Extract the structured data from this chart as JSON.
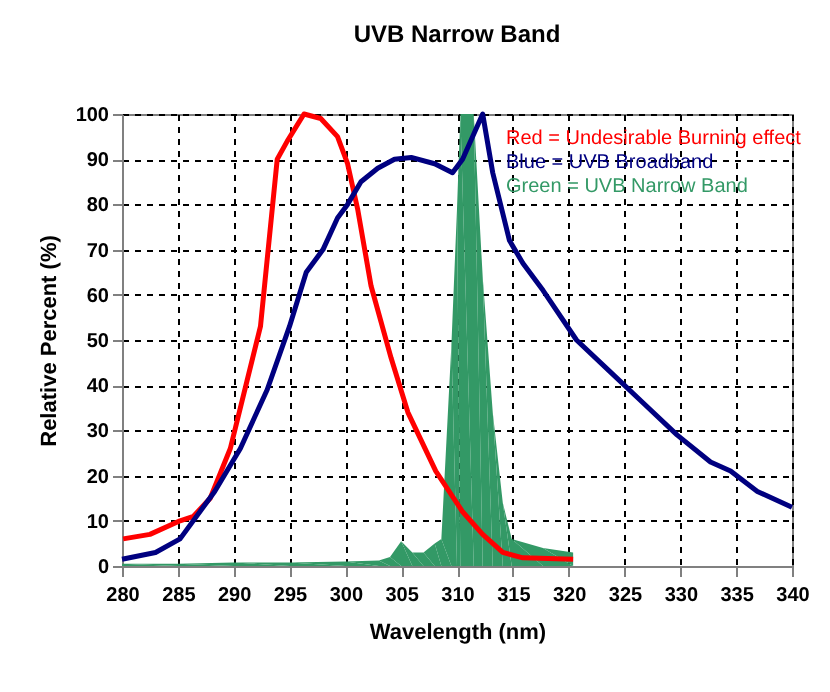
{
  "chart_data": {
    "type": "line",
    "title": "UVB Narrow Band",
    "xlabel": "Wavelength (nm)",
    "ylabel": "Relative Percent (%)",
    "xlim": [
      280,
      340
    ],
    "xticks": [
      280,
      285,
      290,
      295,
      300,
      305,
      310,
      315,
      320,
      325,
      330,
      335,
      340
    ],
    "ylim": [
      0,
      100
    ],
    "yticks": [
      0,
      10,
      20,
      30,
      40,
      50,
      60,
      70,
      80,
      90,
      100
    ],
    "grid": true,
    "legend": "top right",
    "marker": "none",
    "line_style": "solid",
    "series": [
      {
        "name": "Red = Undesirable Burning effect",
        "color": "#ff0000",
        "x": [
          280.1,
          282.5,
          285.2,
          286.4,
          287.9,
          289.7,
          291.2,
          292.4,
          293.9,
          294.8,
          296.3,
          297.8,
          299.3,
          300.2,
          301.1,
          302.3,
          304.1,
          305.6,
          308.1,
          310.5,
          312.3,
          314.1,
          315.9,
          320.4
        ],
        "values": [
          6,
          7,
          10,
          11,
          15,
          26,
          41,
          53,
          90,
          94,
          100,
          99,
          95,
          89,
          79,
          62,
          46,
          34,
          21,
          12,
          7,
          3,
          1.8,
          1.5
        ]
      },
      {
        "name": "Blue = UVB Broadband",
        "color": "#000080",
        "x": [
          280,
          283,
          285.2,
          288.3,
          290.6,
          293,
          295,
          296.5,
          298,
          299.3,
          300.2,
          301.4,
          302.9,
          304.4,
          305.9,
          308,
          309.6,
          310.5,
          312.3,
          313.2,
          314.7,
          315.9,
          317.7,
          320.7,
          323.7,
          326.7,
          329.7,
          332.7,
          334.5,
          336.9,
          340
        ],
        "values": [
          1.5,
          3,
          6,
          16.5,
          26,
          39,
          53,
          65,
          70,
          77,
          80,
          85,
          88,
          90,
          90.4,
          89,
          87,
          90,
          100,
          87,
          72,
          67,
          61,
          50,
          43,
          36,
          29,
          23,
          21,
          16.5,
          13
        ]
      },
      {
        "name": "Green = UVB Narrow Band",
        "color": "#339966",
        "type": "area",
        "x": [
          280,
          285,
          290,
          295,
          300,
          303,
          304,
          305,
          306,
          307,
          308,
          308.6,
          309.5,
          310,
          310.3,
          311.5,
          312.3,
          313.2,
          314.1,
          314.9,
          317.7,
          320.4
        ],
        "values": [
          0.5,
          0.5,
          0.8,
          0.8,
          1,
          1.2,
          2,
          5.5,
          3,
          3,
          5,
          6,
          49,
          79,
          100,
          100,
          64,
          34,
          14,
          6,
          4,
          3
        ]
      }
    ]
  }
}
